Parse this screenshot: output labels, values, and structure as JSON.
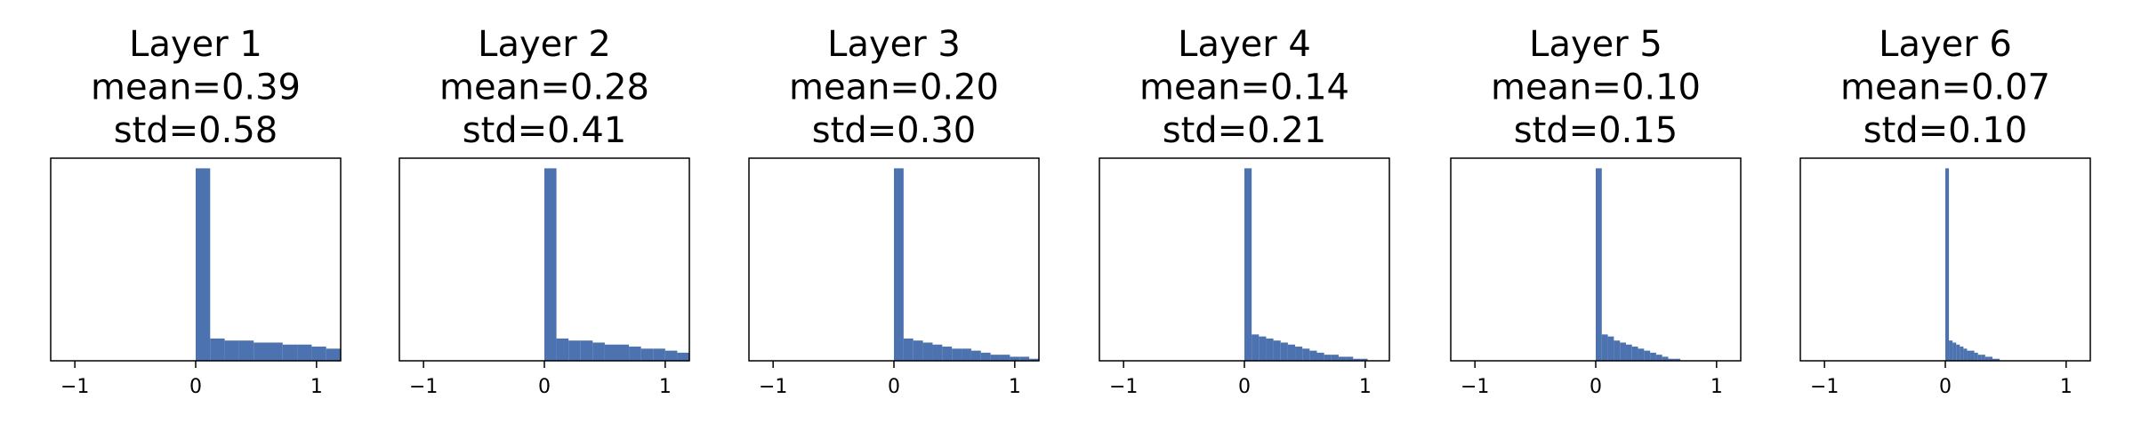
{
  "chart_data": [
    {
      "type": "histogram",
      "title_lines": [
        "Layer 1",
        "mean=0.39",
        "std=0.58"
      ],
      "color": "#4c72b0",
      "bins": [
        0,
        0.12,
        0.24,
        0.36,
        0.48,
        0.6,
        0.72,
        0.84,
        0.96,
        1.08,
        1.2
      ],
      "counts": [
        95,
        11,
        10,
        10,
        9,
        9,
        8,
        8,
        7,
        6
      ],
      "xlim": [
        -1.2,
        1.2
      ],
      "ylim": [
        0,
        100
      ],
      "xticks": [
        {
          "value": -1,
          "label": "−1"
        },
        0,
        1
      ]
    },
    {
      "type": "histogram",
      "title_lines": [
        "Layer 2",
        "mean=0.28",
        "std=0.41"
      ],
      "color": "#4c72b0",
      "bins": [
        0,
        0.1,
        0.2,
        0.3,
        0.4,
        0.5,
        0.6,
        0.7,
        0.8,
        0.9,
        1.0,
        1.1,
        1.2
      ],
      "counts": [
        95,
        11,
        10,
        10,
        9,
        8,
        8,
        7,
        6,
        6,
        5,
        4
      ],
      "xlim": [
        -1.2,
        1.2
      ],
      "ylim": [
        0,
        100
      ],
      "xticks": [
        {
          "value": -1,
          "label": "−1"
        },
        0,
        1
      ]
    },
    {
      "type": "histogram",
      "title_lines": [
        "Layer 3",
        "mean=0.20",
        "std=0.30"
      ],
      "color": "#4c72b0",
      "bins": [
        0,
        0.08,
        0.16,
        0.24,
        0.32,
        0.4,
        0.48,
        0.56,
        0.64,
        0.72,
        0.8,
        0.88,
        0.96,
        1.04,
        1.12,
        1.2
      ],
      "counts": [
        95,
        11,
        10,
        9,
        8,
        7,
        6,
        6,
        5,
        4,
        3,
        3,
        2,
        2,
        1
      ],
      "xlim": [
        -1.2,
        1.2
      ],
      "ylim": [
        0,
        100
      ],
      "xticks": [
        {
          "value": -1,
          "label": "−1"
        },
        0,
        1
      ]
    },
    {
      "type": "histogram",
      "title_lines": [
        "Layer 4",
        "mean=0.14",
        "std=0.21"
      ],
      "color": "#4c72b0",
      "bins": [
        0,
        0.06,
        0.12,
        0.18,
        0.24,
        0.3,
        0.36,
        0.42,
        0.48,
        0.54,
        0.6,
        0.66,
        0.72,
        0.78,
        0.84,
        0.9,
        0.96,
        1.02
      ],
      "counts": [
        95,
        13,
        12,
        11,
        10,
        9,
        8,
        7,
        6,
        5,
        4,
        3,
        3,
        2,
        2,
        1,
        1
      ],
      "xlim": [
        -1.2,
        1.2
      ],
      "ylim": [
        0,
        100
      ],
      "xticks": [
        {
          "value": -1,
          "label": "−1"
        },
        0,
        1
      ]
    },
    {
      "type": "histogram",
      "title_lines": [
        "Layer 5",
        "mean=0.10",
        "std=0.15"
      ],
      "color": "#4c72b0",
      "bins": [
        0,
        0.05,
        0.1,
        0.15,
        0.2,
        0.25,
        0.3,
        0.35,
        0.4,
        0.45,
        0.5,
        0.55,
        0.6,
        0.65,
        0.7
      ],
      "counts": [
        95,
        13,
        12,
        10,
        9,
        8,
        7,
        6,
        5,
        4,
        3,
        2,
        1,
        1
      ],
      "xlim": [
        -1.2,
        1.2
      ],
      "ylim": [
        0,
        100
      ],
      "xticks": [
        {
          "value": -1,
          "label": "−1"
        },
        0,
        1
      ]
    },
    {
      "type": "histogram",
      "title_lines": [
        "Layer 6",
        "mean=0.07",
        "std=0.10"
      ],
      "color": "#4c72b0",
      "bins": [
        0,
        0.03,
        0.06,
        0.09,
        0.12,
        0.15,
        0.18,
        0.21,
        0.24,
        0.27,
        0.3,
        0.33,
        0.36,
        0.39,
        0.42,
        0.45
      ],
      "counts": [
        95,
        10,
        9,
        8,
        7,
        6,
        5,
        5,
        4,
        3,
        3,
        2,
        2,
        1,
        1
      ],
      "xlim": [
        -1.2,
        1.2
      ],
      "ylim": [
        0,
        100
      ],
      "xticks": [
        {
          "value": -1,
          "label": "−1"
        },
        0,
        1
      ]
    }
  ]
}
